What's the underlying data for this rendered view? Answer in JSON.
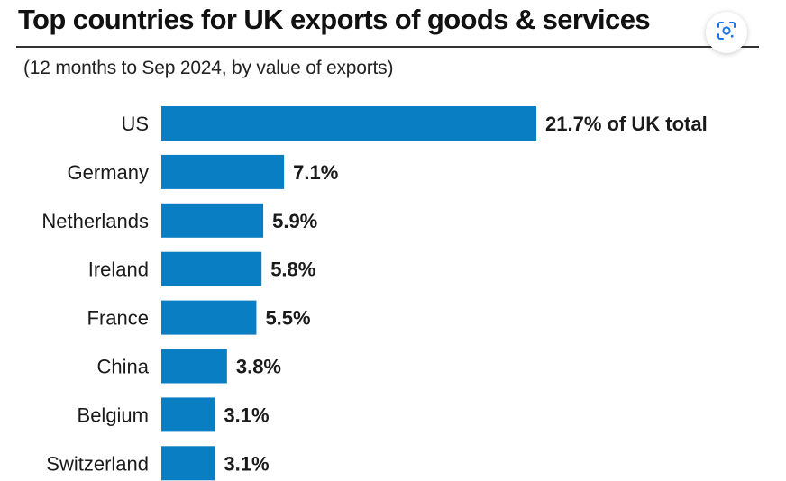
{
  "header": {
    "title": "Top countries for UK exports of goods & services",
    "subtitle": "(12 months to Sep 2024, by value of exports)"
  },
  "lens_button": {
    "icon": "google-lens-icon",
    "color": "#1a73e8"
  },
  "colors": {
    "bar": "#0a7ec2",
    "text": "#1a1a1a"
  },
  "chart_data": {
    "type": "bar",
    "orientation": "horizontal",
    "title": "Top countries for UK exports of goods & services",
    "subtitle": "(12 months to Sep 2024, by value of exports)",
    "categories": [
      "US",
      "Germany",
      "Netherlands",
      "Ireland",
      "France",
      "China",
      "Belgium",
      "Switzerland"
    ],
    "values": [
      21.7,
      7.1,
      5.9,
      5.8,
      5.5,
      3.8,
      3.1,
      3.1
    ],
    "value_labels": [
      "21.7% of UK total",
      "7.1%",
      "5.9%",
      "5.8%",
      "5.5%",
      "3.8%",
      "3.1%",
      "3.1%"
    ],
    "xlabel": "",
    "ylabel": "",
    "unit": "%",
    "grid": false,
    "legend": "none"
  }
}
